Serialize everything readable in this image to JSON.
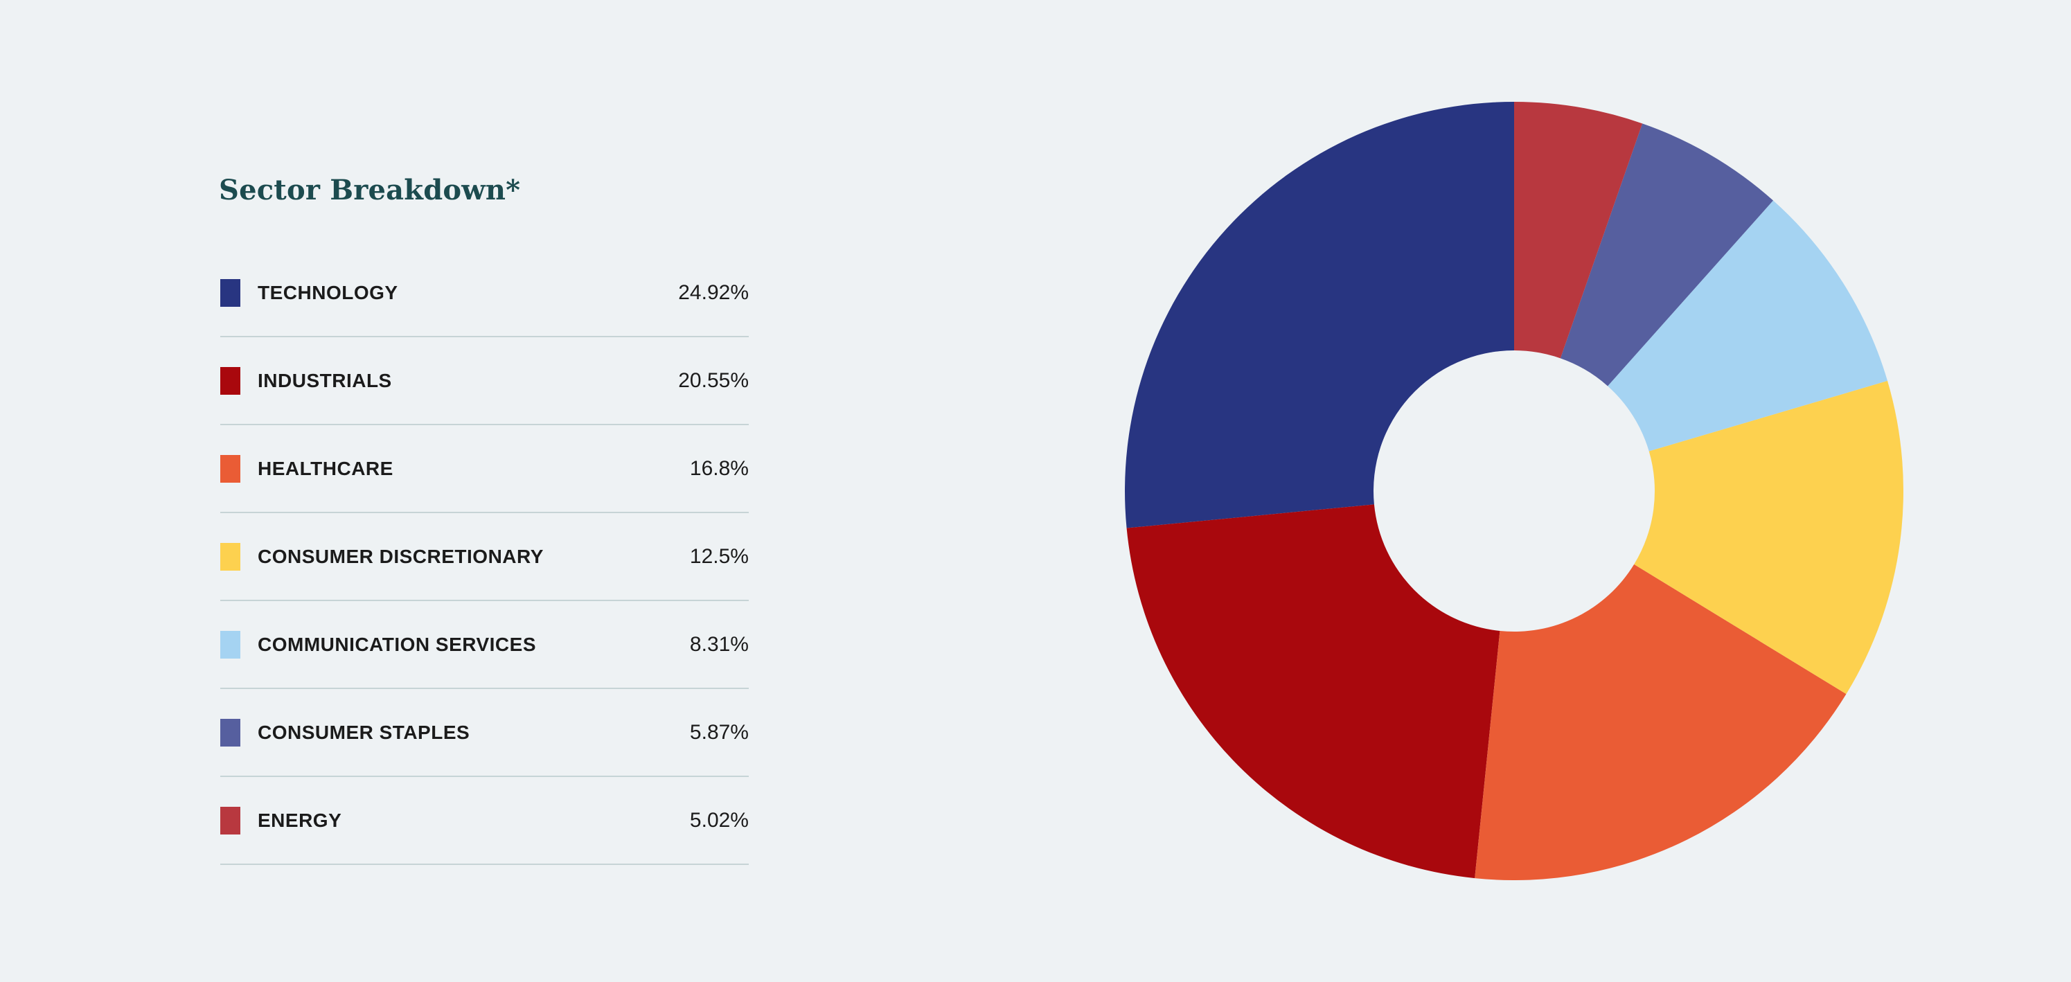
{
  "page": {
    "background_color": "#eef2f4"
  },
  "chart_data": {
    "type": "pie",
    "title": "Sector Breakdown*",
    "title_color": "#1c4b4f",
    "donut": true,
    "inner_radius_ratio": 0.361,
    "start_angle": "12-oclock",
    "direction": "counterclockwise",
    "legend_position": "left",
    "values_unit": "%",
    "categories": [
      "TECHNOLOGY",
      "INDUSTRIALS",
      "HEALTHCARE",
      "CONSUMER DISCRETIONARY",
      "COMMUNICATION SERVICES",
      "CONSUMER STAPLES",
      "ENERGY"
    ],
    "values": [
      24.92,
      20.55,
      16.8,
      12.5,
      8.31,
      5.87,
      5.02
    ],
    "value_labels": [
      "24.92%",
      "20.55%",
      "16.8%",
      "12.5%",
      "8.31%",
      "5.87%",
      "5.02%"
    ],
    "colors": [
      "#283581",
      "#a9080d",
      "#ea5c35",
      "#fdd14f",
      "#a5d3f2",
      "#565f9f",
      "#b8383f"
    ]
  },
  "legend_style": {
    "divider_color": "#c6d4d6",
    "label_color": "#1b1b1b",
    "value_color": "#1b1b1b"
  }
}
